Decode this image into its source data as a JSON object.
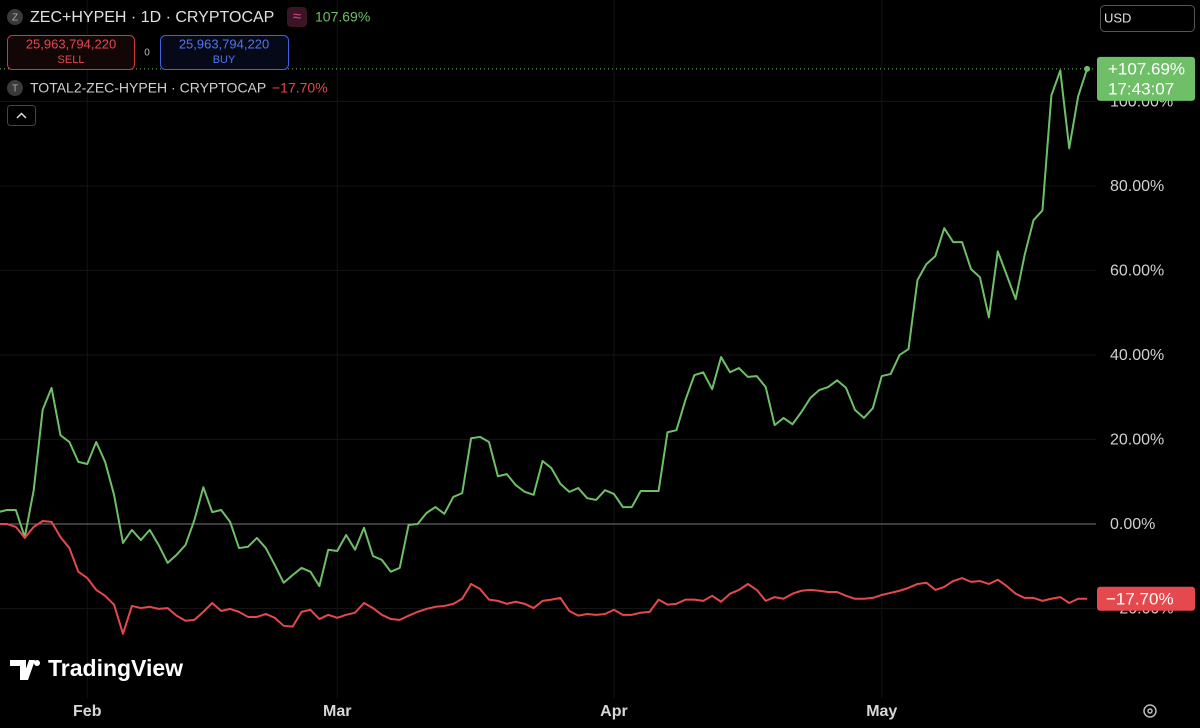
{
  "chart_data": {
    "type": "line",
    "x": [
      22,
      23,
      24,
      25,
      26,
      27,
      28,
      29,
      30,
      31,
      32,
      33,
      34,
      35,
      36,
      37,
      38,
      39,
      40,
      41,
      42,
      43,
      44,
      45,
      46,
      47,
      48,
      49,
      50,
      51,
      52,
      53,
      54,
      55,
      56,
      57,
      58,
      59,
      60,
      61,
      62,
      63,
      64,
      65,
      66,
      67,
      68,
      69,
      70,
      71,
      72,
      73,
      74,
      75,
      76,
      77,
      78,
      79,
      80,
      81,
      82,
      83,
      84,
      85,
      86,
      87,
      88,
      89,
      90,
      91,
      92,
      93,
      94,
      95,
      96,
      97,
      98,
      99,
      100,
      101,
      102,
      103,
      104,
      105,
      106,
      107,
      108,
      109,
      110,
      111,
      112,
      113,
      114,
      115,
      116,
      117,
      118,
      119,
      120,
      121,
      122,
      123,
      124,
      125,
      126,
      127,
      128,
      129,
      130,
      131,
      132,
      133,
      134,
      135,
      136,
      137,
      138,
      139,
      140,
      141,
      142,
      143,
      144
    ],
    "series": [
      {
        "name": "ZEC+HYPEH · 1D · CRYPTOCAP",
        "legend_value": "107.69%",
        "badge": "+107.69%",
        "color": "#6fbf68",
        "values": [
          2.8,
          3.3,
          3.3,
          -3.1,
          8.0,
          27.0,
          32.2,
          21.0,
          19.4,
          14.7,
          14.2,
          19.4,
          14.7,
          6.9,
          -4.5,
          -1.4,
          -3.8,
          -1.4,
          -5.0,
          -9.2,
          -7.3,
          -5.0,
          0.9,
          8.7,
          2.8,
          3.3,
          0.5,
          -5.7,
          -5.4,
          -3.3,
          -5.7,
          -9.7,
          -13.9,
          -12.1,
          -10.4,
          -11.3,
          -14.7,
          -6.1,
          -6.4,
          -2.6,
          -6.1,
          -0.9,
          -7.6,
          -8.5,
          -11.3,
          -10.4,
          -0.2,
          0.0,
          2.6,
          4.0,
          2.4,
          6.4,
          7.3,
          20.3,
          20.6,
          19.4,
          11.3,
          11.8,
          9.2,
          7.6,
          6.9,
          14.9,
          13.2,
          9.5,
          7.6,
          8.5,
          6.1,
          5.7,
          8.0,
          7.1,
          4.0,
          4.0,
          7.8,
          7.8,
          7.8,
          21.7,
          22.2,
          29.3,
          35.2,
          35.9,
          31.9,
          39.5,
          35.9,
          36.9,
          34.8,
          35.0,
          32.4,
          23.4,
          25.1,
          23.6,
          26.5,
          29.8,
          31.7,
          32.4,
          34.0,
          32.2,
          27.0,
          25.1,
          27.4,
          35.0,
          35.5,
          40.0,
          41.4,
          57.7,
          61.5,
          63.4,
          70.0,
          66.7,
          66.7,
          60.3,
          58.4,
          48.9,
          64.5,
          58.9,
          53.2,
          63.6,
          71.9,
          74.2,
          101.4,
          107.3,
          88.9,
          101.2,
          107.69
        ]
      },
      {
        "name": "TOTAL2-ZEC-HYPEH · CRYPTOCAP",
        "legend_value": "−17.70%",
        "badge": "−17.70%",
        "color": "#e5484d",
        "values": [
          0,
          0,
          -0.7,
          -3.3,
          -0.7,
          0.7,
          0.5,
          -3.1,
          -5.7,
          -11.3,
          -12.8,
          -15.6,
          -17.0,
          -19.1,
          -26.0,
          -19.4,
          -19.9,
          -19.6,
          -20.1,
          -19.9,
          -21.7,
          -22.9,
          -22.7,
          -20.8,
          -18.7,
          -20.6,
          -20.1,
          -20.8,
          -22.0,
          -22.0,
          -21.3,
          -22.2,
          -24.1,
          -24.3,
          -20.8,
          -20.3,
          -22.5,
          -21.5,
          -22.2,
          -21.5,
          -21.0,
          -18.7,
          -19.9,
          -21.5,
          -22.5,
          -22.7,
          -21.7,
          -20.8,
          -20.1,
          -19.6,
          -19.4,
          -18.9,
          -17.7,
          -14.2,
          -15.4,
          -17.9,
          -18.2,
          -18.9,
          -18.4,
          -18.9,
          -19.9,
          -18.2,
          -17.9,
          -17.5,
          -20.6,
          -21.7,
          -21.3,
          -21.5,
          -21.3,
          -20.3,
          -21.5,
          -21.5,
          -21.0,
          -20.8,
          -17.9,
          -19.1,
          -18.9,
          -17.9,
          -17.9,
          -18.2,
          -17.0,
          -18.4,
          -16.5,
          -15.6,
          -14.2,
          -15.6,
          -18.2,
          -17.3,
          -17.7,
          -16.5,
          -15.8,
          -15.6,
          -15.8,
          -16.1,
          -16.1,
          -17.0,
          -17.7,
          -17.7,
          -17.5,
          -16.8,
          -16.3,
          -15.8,
          -15.1,
          -14.2,
          -13.9,
          -15.6,
          -14.9,
          -13.5,
          -12.8,
          -13.7,
          -13.5,
          -14.2,
          -13.2,
          -14.7,
          -16.5,
          -17.5,
          -17.5,
          -18.2,
          -17.7,
          -17.3,
          -18.7,
          -17.7,
          -17.7
        ]
      }
    ],
    "countdown": "17:43:07",
    "xlim": [
      22,
      145
    ],
    "xticks": [
      {
        "value": 32,
        "label": "Feb"
      },
      {
        "value": 60,
        "label": "Mar"
      },
      {
        "value": 91,
        "label": "Apr"
      },
      {
        "value": 121,
        "label": "May"
      }
    ],
    "ylim": [
      -40,
      124
    ],
    "yticks": [
      {
        "value": -20,
        "label": "−20.00%"
      },
      {
        "value": 0,
        "label": "0.00%"
      },
      {
        "value": 20,
        "label": "20.00%"
      },
      {
        "value": 40,
        "label": "40.00%"
      },
      {
        "value": 60,
        "label": "60.00%"
      },
      {
        "value": 80,
        "label": "80.00%"
      },
      {
        "value": 100,
        "label": "100.00%"
      }
    ],
    "grid": true
  },
  "toolbar": {
    "currency": "USD",
    "sell_price": "25,963,794,220",
    "sell": "SELL",
    "spread": "0",
    "buy_price": "25,963,794,220",
    "buy": "BUY"
  },
  "brand": "TradingView",
  "icons": {
    "symbol1": "Z",
    "symbol2": "T",
    "compare": "≈"
  }
}
